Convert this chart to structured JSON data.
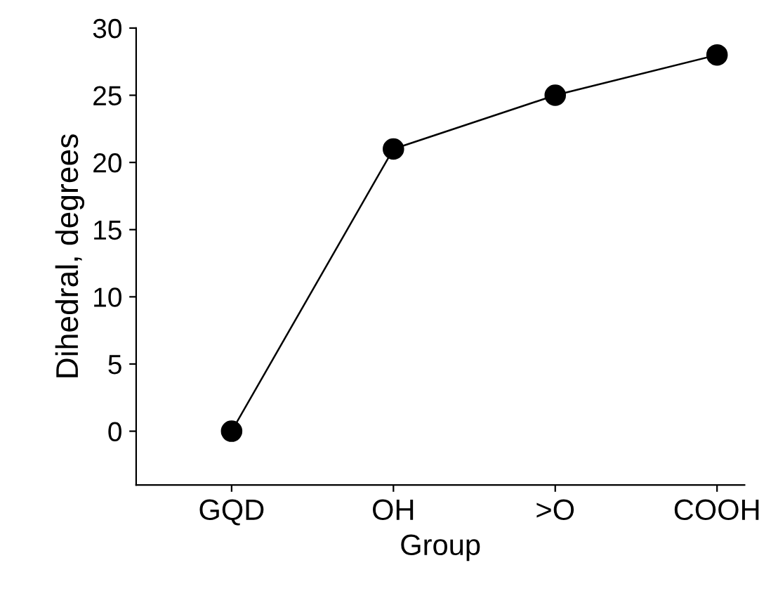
{
  "chart_data": {
    "type": "line",
    "xlabel": "Group",
    "ylabel": "Dihedral, degrees",
    "categories": [
      "GQD",
      "OH",
      ">O",
      "COOH"
    ],
    "series": [
      {
        "color": "#000000",
        "values": [
          0,
          21,
          25,
          28
        ]
      }
    ],
    "ylim": [
      -4,
      30
    ],
    "yticks": [
      0,
      5,
      10,
      15,
      20,
      25,
      30
    ],
    "marker": "circle",
    "line_style": "solid",
    "grid": false,
    "legend": false
  }
}
